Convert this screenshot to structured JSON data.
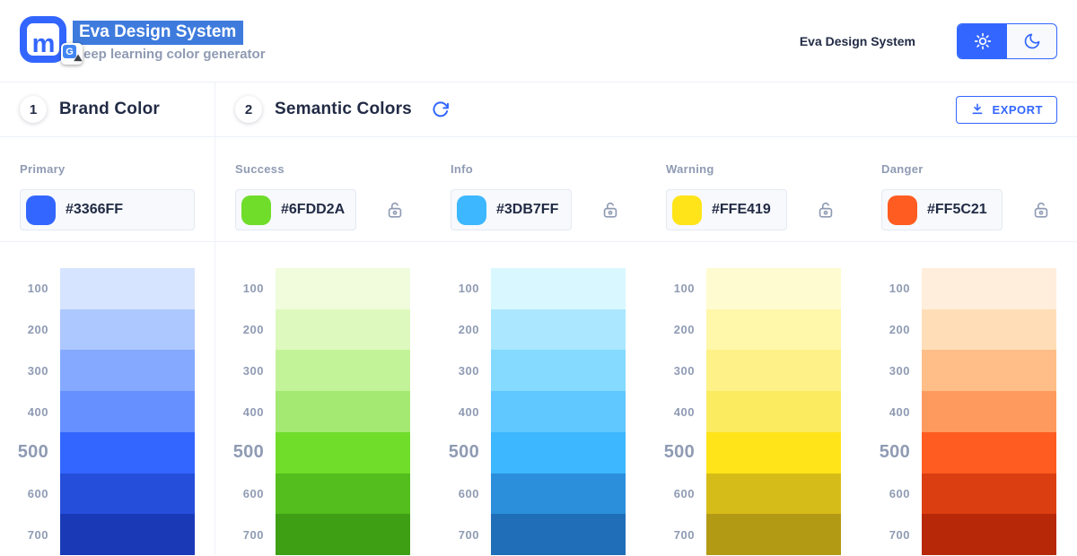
{
  "theme": {
    "accent": "#3366FF",
    "text": "#222B45",
    "muted": "#8F9BB3",
    "divider": "#EDF1F7",
    "input-bg": "#F7F9FC",
    "input-border": "#E4E9F2",
    "selection": "#3E7BDD"
  },
  "header": {
    "logo_letter": "m",
    "title": "Eva Design System",
    "subtitle_visible": "eep learning color generator",
    "right_title": "Eva Design System",
    "translate_icon_letter": "G"
  },
  "sections": {
    "brand": {
      "number": "1",
      "title": "Brand Color"
    },
    "semantic": {
      "number": "2",
      "title": "Semantic Colors"
    },
    "export_label": "EXPORT"
  },
  "scale_steps": [
    "100",
    "200",
    "300",
    "400",
    "500",
    "600",
    "700"
  ],
  "colors": [
    {
      "label": "Primary",
      "hex": "#3366FF",
      "locked": false,
      "scale": [
        "#D6E4FF",
        "#ADC8FF",
        "#84A9FF",
        "#6690FF",
        "#3366FF",
        "#254EDB",
        "#1939B7"
      ]
    },
    {
      "label": "Success",
      "hex": "#6FDD2A",
      "locked": true,
      "scale": [
        "#F0FCDC",
        "#DEF9BD",
        "#C3F398",
        "#A4E972",
        "#6FDD2A",
        "#53BE1E",
        "#3E9F15"
      ]
    },
    {
      "label": "Info",
      "hex": "#3DB7FF",
      "locked": true,
      "scale": [
        "#D9F7FF",
        "#ABE8FF",
        "#84DAFF",
        "#61C7FF",
        "#3DB7FF",
        "#2C8FDB",
        "#1F6EB7"
      ]
    },
    {
      "label": "Warning",
      "hex": "#FFE419",
      "locked": true,
      "scale": [
        "#FFFBD1",
        "#FFF7AA",
        "#FEF187",
        "#FBEB60",
        "#FFE419",
        "#D6BC18",
        "#B29A15"
      ]
    },
    {
      "label": "Danger",
      "hex": "#FF5C21",
      "locked": true,
      "scale": [
        "#FFEEDB",
        "#FFDEB7",
        "#FFBE88",
        "#FF9A5E",
        "#FF5C21",
        "#DB3E11",
        "#B72809"
      ]
    }
  ]
}
